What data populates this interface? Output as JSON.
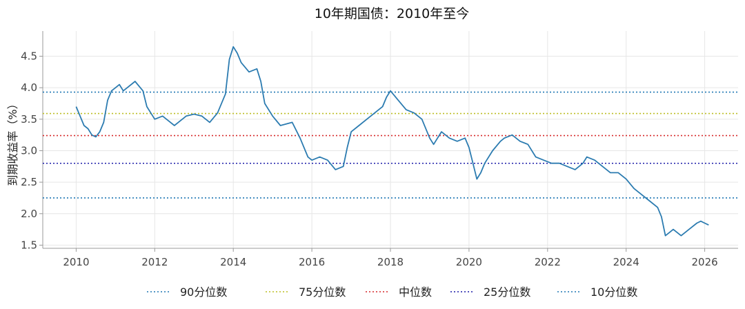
{
  "chart_data": {
    "type": "line",
    "title": "10年期国债：2010年至今",
    "ylabel": "到期收益率（%）",
    "xlabel": "",
    "xlim": [
      2009.15,
      2026.85
    ],
    "ylim": [
      1.45,
      4.9
    ],
    "xticks": [
      2010,
      2012,
      2014,
      2016,
      2018,
      2020,
      2022,
      2024,
      2026
    ],
    "yticks": [
      1.5,
      2.0,
      2.5,
      3.0,
      3.5,
      4.0,
      4.5
    ],
    "grid": true,
    "legend_position": "bottom",
    "series": [
      {
        "name": "到期收益率",
        "color": "#2b7bb0",
        "x": [
          2010.0,
          2010.1,
          2010.2,
          2010.3,
          2010.4,
          2010.5,
          2010.6,
          2010.7,
          2010.8,
          2010.9,
          2011.0,
          2011.1,
          2011.2,
          2011.3,
          2011.5,
          2011.7,
          2011.8,
          2011.9,
          2012.0,
          2012.2,
          2012.4,
          2012.5,
          2012.6,
          2012.8,
          2013.0,
          2013.2,
          2013.4,
          2013.6,
          2013.8,
          2013.9,
          2014.0,
          2014.1,
          2014.2,
          2014.4,
          2014.6,
          2014.7,
          2014.8,
          2015.0,
          2015.2,
          2015.5,
          2015.7,
          2015.9,
          2016.0,
          2016.2,
          2016.4,
          2016.6,
          2016.8,
          2016.9,
          2017.0,
          2017.2,
          2017.4,
          2017.6,
          2017.8,
          2017.9,
          2018.0,
          2018.2,
          2018.4,
          2018.6,
          2018.8,
          2019.0,
          2019.1,
          2019.3,
          2019.5,
          2019.7,
          2019.9,
          2020.0,
          2020.1,
          2020.2,
          2020.3,
          2020.4,
          2020.6,
          2020.8,
          2020.9,
          2021.1,
          2021.3,
          2021.5,
          2021.7,
          2021.9,
          2022.1,
          2022.3,
          2022.5,
          2022.7,
          2022.9,
          2023.0,
          2023.2,
          2023.4,
          2023.6,
          2023.8,
          2024.0,
          2024.2,
          2024.4,
          2024.6,
          2024.8,
          2024.9,
          2025.0,
          2025.1,
          2025.2,
          2025.4,
          2025.6,
          2025.8,
          2025.9,
          2026.0,
          2026.1
        ],
        "values": [
          3.7,
          3.55,
          3.4,
          3.35,
          3.25,
          3.22,
          3.3,
          3.45,
          3.8,
          3.95,
          4.0,
          4.05,
          3.95,
          4.0,
          4.1,
          3.95,
          3.7,
          3.6,
          3.5,
          3.55,
          3.45,
          3.4,
          3.45,
          3.55,
          3.58,
          3.55,
          3.45,
          3.6,
          3.9,
          4.45,
          4.65,
          4.55,
          4.4,
          4.25,
          4.3,
          4.1,
          3.75,
          3.55,
          3.4,
          3.45,
          3.2,
          2.9,
          2.85,
          2.9,
          2.85,
          2.7,
          2.75,
          3.05,
          3.3,
          3.4,
          3.5,
          3.6,
          3.7,
          3.85,
          3.95,
          3.8,
          3.65,
          3.6,
          3.5,
          3.2,
          3.1,
          3.3,
          3.2,
          3.15,
          3.2,
          3.05,
          2.8,
          2.55,
          2.65,
          2.8,
          3.0,
          3.15,
          3.2,
          3.25,
          3.15,
          3.1,
          2.9,
          2.85,
          2.8,
          2.8,
          2.75,
          2.7,
          2.8,
          2.9,
          2.85,
          2.75,
          2.65,
          2.65,
          2.55,
          2.4,
          2.3,
          2.2,
          2.1,
          1.95,
          1.65,
          1.7,
          1.75,
          1.65,
          1.75,
          1.85,
          1.88,
          1.85,
          1.82
        ]
      }
    ],
    "reference_lines": [
      {
        "name": "90分位数",
        "value": 3.93,
        "color": "#1f77b4"
      },
      {
        "name": "75分位数",
        "value": 3.59,
        "color": "#bcbd22"
      },
      {
        "name": "中位数",
        "value": 3.24,
        "color": "#d62728"
      },
      {
        "name": "25分位数",
        "value": 2.8,
        "color": "#1a1aa8"
      },
      {
        "name": "10分位数",
        "value": 2.25,
        "color": "#1f77b4"
      }
    ]
  }
}
